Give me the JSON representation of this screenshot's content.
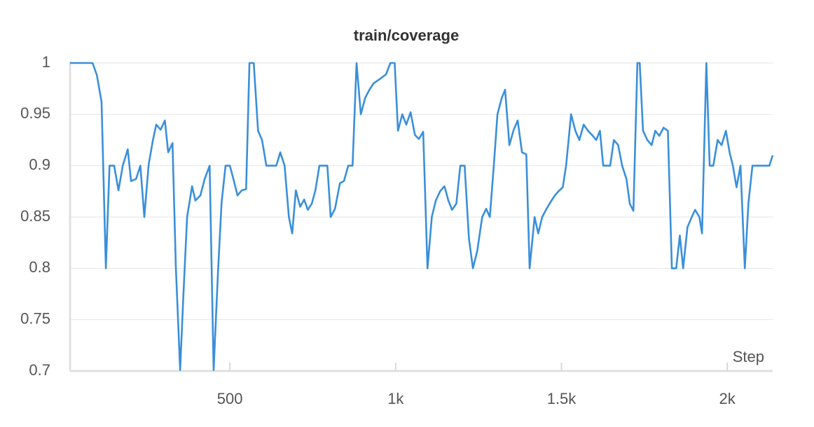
{
  "chart_data": {
    "type": "line",
    "title": "train/coverage",
    "x_label": "Step",
    "x": [
      18,
      86,
      99,
      113,
      126,
      137,
      151,
      164,
      177,
      192,
      202,
      217,
      230,
      242,
      255,
      268,
      278,
      291,
      304,
      314,
      327,
      337,
      350,
      360,
      371,
      386,
      396,
      411,
      424,
      439,
      451,
      464,
      475,
      487,
      500,
      513,
      523,
      536,
      549,
      559,
      572,
      585,
      597,
      610,
      623,
      640,
      652,
      665,
      678,
      688,
      699,
      712,
      724,
      735,
      747,
      758,
      770,
      783,
      794,
      804,
      817,
      832,
      844,
      857,
      870,
      882,
      895,
      908,
      921,
      933,
      946,
      959,
      971,
      984,
      997,
      1007,
      1020,
      1032,
      1045,
      1058,
      1070,
      1083,
      1096,
      1109,
      1121,
      1134,
      1147,
      1159,
      1170,
      1183,
      1195,
      1208,
      1221,
      1233,
      1246,
      1261,
      1273,
      1284,
      1296,
      1307,
      1320,
      1330,
      1343,
      1356,
      1368,
      1381,
      1394,
      1404,
      1419,
      1430,
      1442,
      1455,
      1468,
      1480,
      1491,
      1504,
      1514,
      1529,
      1542,
      1554,
      1567,
      1580,
      1592,
      1605,
      1616,
      1626,
      1637,
      1647,
      1658,
      1671,
      1683,
      1696,
      1706,
      1717,
      1729,
      1736,
      1746,
      1759,
      1772,
      1783,
      1795,
      1808,
      1821,
      1833,
      1846,
      1857,
      1867,
      1880,
      1893,
      1903,
      1916,
      1924,
      1937,
      1947,
      1958,
      1971,
      1983,
      1996,
      2007,
      2017,
      2028,
      2040,
      2053,
      2064,
      2076,
      2089,
      2110,
      2127,
      2137
    ],
    "values": [
      1.0,
      1.0,
      0.988,
      0.962,
      0.8,
      0.9,
      0.9,
      0.876,
      0.9,
      0.916,
      0.885,
      0.887,
      0.9,
      0.85,
      0.901,
      0.925,
      0.94,
      0.935,
      0.944,
      0.913,
      0.922,
      0.802,
      0.701,
      0.775,
      0.85,
      0.88,
      0.866,
      0.871,
      0.887,
      0.9,
      0.701,
      0.795,
      0.864,
      0.9,
      0.9,
      0.884,
      0.871,
      0.876,
      0.877,
      1.0,
      1.0,
      0.934,
      0.925,
      0.9,
      0.9,
      0.9,
      0.913,
      0.9,
      0.85,
      0.834,
      0.876,
      0.86,
      0.867,
      0.857,
      0.863,
      0.876,
      0.9,
      0.9,
      0.9,
      0.85,
      0.858,
      0.883,
      0.885,
      0.9,
      0.9,
      1.0,
      0.95,
      0.966,
      0.974,
      0.98,
      0.983,
      0.986,
      0.989,
      1.0,
      1.0,
      0.934,
      0.95,
      0.94,
      0.952,
      0.93,
      0.926,
      0.933,
      0.8,
      0.85,
      0.866,
      0.875,
      0.88,
      0.866,
      0.857,
      0.863,
      0.9,
      0.9,
      0.829,
      0.8,
      0.817,
      0.85,
      0.858,
      0.85,
      0.9,
      0.95,
      0.966,
      0.974,
      0.92,
      0.935,
      0.944,
      0.913,
      0.911,
      0.8,
      0.85,
      0.834,
      0.85,
      0.858,
      0.865,
      0.871,
      0.875,
      0.879,
      0.9,
      0.95,
      0.934,
      0.925,
      0.94,
      0.934,
      0.93,
      0.925,
      0.934,
      0.9,
      0.9,
      0.9,
      0.925,
      0.92,
      0.9,
      0.887,
      0.863,
      0.856,
      1.0,
      1.0,
      0.934,
      0.925,
      0.92,
      0.934,
      0.929,
      0.937,
      0.934,
      0.8,
      0.8,
      0.832,
      0.8,
      0.84,
      0.85,
      0.857,
      0.85,
      0.834,
      1.0,
      0.9,
      0.9,
      0.925,
      0.92,
      0.934,
      0.913,
      0.9,
      0.879,
      0.9,
      0.8,
      0.864,
      0.9,
      0.9,
      0.9,
      0.9,
      0.91
    ],
    "color": "#3a8fd9",
    "xlim": [
      18,
      2137
    ],
    "ylim": [
      0.7,
      1
    ],
    "xticks": [
      500,
      {
        "value": 1000,
        "label": "1k"
      },
      {
        "value": 1500,
        "label": "1.5k"
      },
      {
        "value": 2000,
        "label": "2k"
      }
    ],
    "yticks": [
      0.7,
      0.75,
      0.8,
      0.85,
      0.9,
      0.95,
      1
    ],
    "grid": true
  }
}
